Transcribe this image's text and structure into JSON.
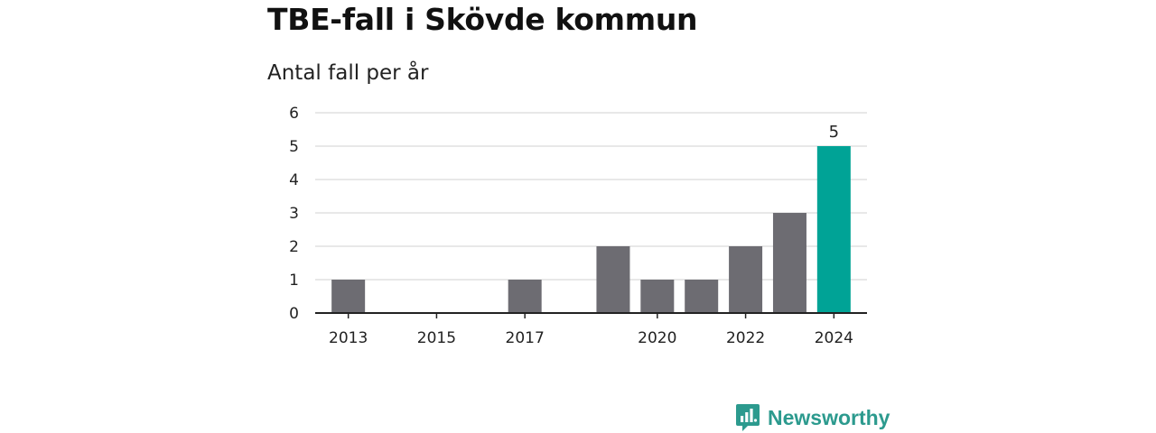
{
  "colors": {
    "bar": "#6d6c72",
    "highlight": "#00a396",
    "grid": "#d9d9d9",
    "axis": "#222222",
    "brand": "#2c9a8e"
  },
  "brand": {
    "name": "Newsworthy",
    "icon": "newsworthy-logo-icon"
  },
  "chart_data": {
    "type": "bar",
    "title": "TBE-fall i Skövde kommun",
    "subtitle": "Antal fall per år",
    "xlabel": "",
    "ylabel": "",
    "ylim": [
      0,
      6
    ],
    "yticks": [
      0,
      1,
      2,
      3,
      4,
      5,
      6
    ],
    "grid": true,
    "categories": [
      "2013",
      "2014",
      "2015",
      "2016",
      "2017",
      "2018",
      "2019",
      "2020",
      "2021",
      "2022",
      "2023",
      "2024"
    ],
    "values": [
      1,
      0,
      0,
      0,
      1,
      0,
      2,
      1,
      1,
      2,
      3,
      5
    ],
    "xtick_labels": [
      "2013",
      "2015",
      "2017",
      "2020",
      "2022",
      "2024"
    ],
    "highlight": "2024",
    "data_labels": [
      {
        "category": "2024",
        "value": 5,
        "text": "5"
      }
    ]
  }
}
